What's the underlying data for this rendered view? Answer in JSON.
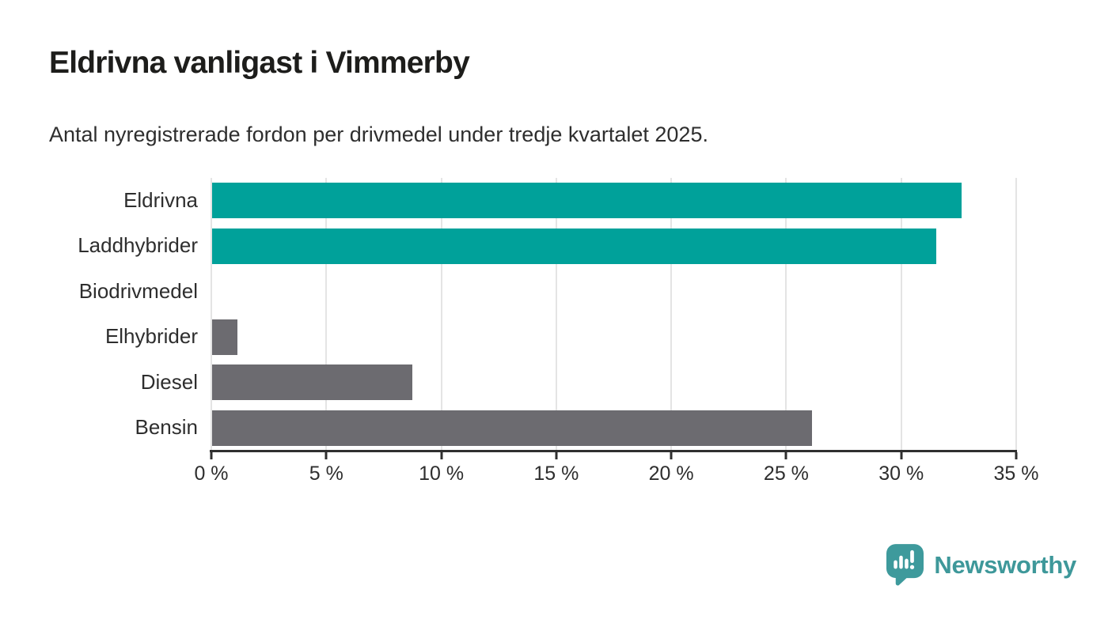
{
  "header": {
    "title": "Eldrivna vanligast i Vimmerby",
    "subtitle": "Antal nyregistrerade fordon per drivmedel under tredje kvartalet 2025."
  },
  "chart_data": {
    "type": "bar",
    "orientation": "horizontal",
    "title": "Eldrivna vanligast i Vimmerby",
    "subtitle": "Antal nyregistrerade fordon per drivmedel under tredje kvartalet 2025.",
    "categories": [
      "Eldrivna",
      "Laddhybrider",
      "Biodrivmedel",
      "Elhybrider",
      "Diesel",
      "Bensin"
    ],
    "values": [
      32.6,
      31.5,
      0,
      1.1,
      8.7,
      26.1
    ],
    "unit": "%",
    "bar_colors": [
      "#00a19a",
      "#00a19a",
      "#6c6b70",
      "#6c6b70",
      "#6c6b70",
      "#6c6b70"
    ],
    "xlim": [
      0,
      35
    ],
    "x_tick_step": 5,
    "x_ticks": [
      0,
      5,
      10,
      15,
      20,
      25,
      30,
      35
    ],
    "x_tick_labels": [
      "0 %",
      "5 %",
      "10 %",
      "15 %",
      "20 %",
      "25 %",
      "30 %",
      "35 %"
    ],
    "grid": "vertical",
    "legend": "none",
    "xlabel": "",
    "ylabel": ""
  },
  "branding": {
    "logo_text": "Newsworthy",
    "logo_icon": "newsworthy-bubble-chart-icon",
    "logo_color": "#3e989a",
    "icon_fill": "#3e9a9c"
  },
  "colors": {
    "accent_teal": "#00a19a",
    "neutral_gray": "#6c6b70",
    "gridline": "#e4e4e4",
    "axis": "#2f2f2f",
    "title_text": "#1d1d1b",
    "body_text": "#2e2e2e",
    "background": "#ffffff"
  }
}
